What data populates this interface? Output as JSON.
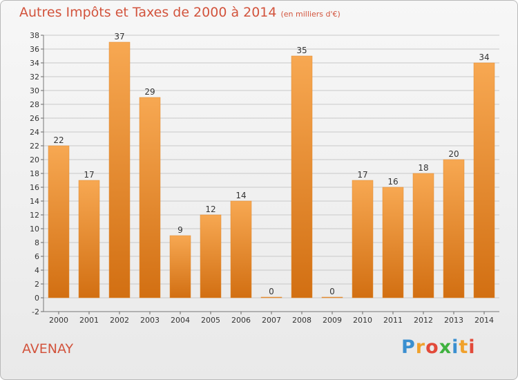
{
  "title": "Autres Impôts et Taxes de 2000 à 2014",
  "subtitle": "(en milliers d'€)",
  "commune": "AVENAY",
  "logo": {
    "text": "Proxiti",
    "letters": [
      "P",
      "r",
      "o",
      "x",
      "i",
      "t",
      "i"
    ],
    "letter_colors": [
      "#3a8fd0",
      "#f0a12c",
      "#e24a3a",
      "#3fb23f",
      "#3a8fd0",
      "#f0a12c",
      "#e24a3a"
    ]
  },
  "colors": {
    "bar_light": "#f7a852",
    "bar_dark": "#d26f12",
    "title": "#d2533c",
    "grid": "#c8c8c8",
    "axis_text": "#333333"
  },
  "chart_data": {
    "type": "bar",
    "title": "Autres Impôts et Taxes de 2000 à 2014",
    "subtitle": "(en milliers d'€)",
    "xlabel": "",
    "ylabel": "",
    "categories": [
      "2000",
      "2001",
      "2002",
      "2003",
      "2004",
      "2005",
      "2006",
      "2007",
      "2008",
      "2009",
      "2010",
      "2011",
      "2012",
      "2013",
      "2014"
    ],
    "values": [
      22,
      17,
      37,
      29,
      9,
      12,
      14,
      0,
      35,
      0,
      17,
      16,
      18,
      20,
      34
    ],
    "ylim": [
      -2,
      38
    ],
    "yticks": [
      -2,
      0,
      2,
      4,
      6,
      8,
      10,
      12,
      14,
      16,
      18,
      20,
      22,
      24,
      26,
      28,
      30,
      32,
      34,
      36,
      38
    ],
    "grid": true,
    "legend": "none"
  }
}
